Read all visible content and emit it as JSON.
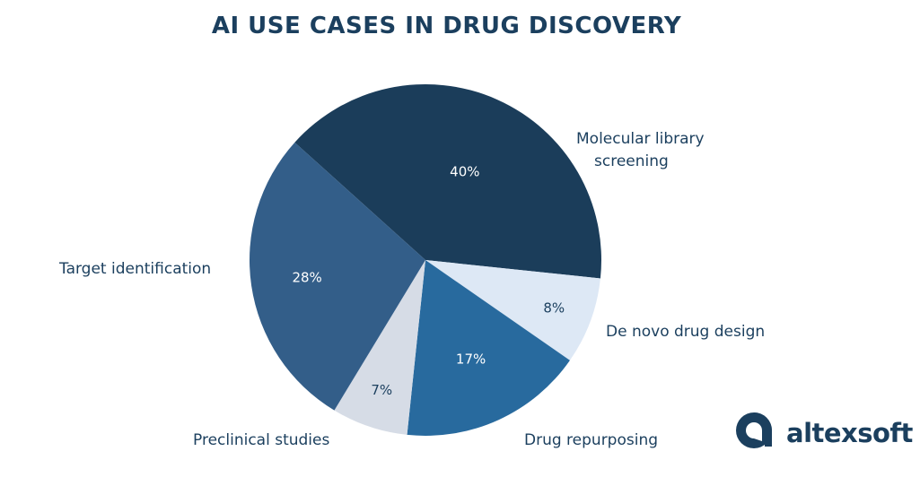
{
  "chart_data": {
    "type": "pie",
    "title": "AI USE CASES IN DRUG DISCOVERY",
    "slices": [
      {
        "label": [
          "Molecular library",
          "screening"
        ],
        "value": 40,
        "value_label": "40%",
        "color": "#1b3d5a",
        "text_color": "#ffffff"
      },
      {
        "label": [
          "De novo drug design"
        ],
        "value": 8,
        "value_label": "8%",
        "color": "#dde8f5",
        "text_color": "#1b3f5e"
      },
      {
        "label": [
          "Drug repurposing"
        ],
        "value": 17,
        "value_label": "17%",
        "color": "#286a9e",
        "text_color": "#ffffff"
      },
      {
        "label": [
          "Preclinical studies"
        ],
        "value": 7,
        "value_label": "7%",
        "color": "#d6dce6",
        "text_color": "#1b3f5e"
      },
      {
        "label": [
          "Target identification"
        ],
        "value": 28,
        "value_label": "28%",
        "color": "#335e89",
        "text_color": "#ffffff"
      }
    ]
  },
  "brand": {
    "name": "altexsoft",
    "logo_icon": "altexsoft-logo-icon",
    "color": "#1b3f5e"
  }
}
